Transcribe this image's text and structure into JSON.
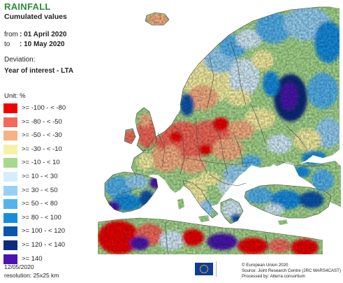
{
  "header": {
    "title": "RAINFALL",
    "subtitle": "Cumulated values",
    "from_label": "from",
    "from_value": ": 01 April 2020",
    "to_label": "to",
    "to_value": ": 10 May 2020",
    "deviation_label": "Deviation:",
    "deviation_value": "Year of interest - LTA"
  },
  "legend": {
    "unit": "Unit:  %",
    "items": [
      {
        "label": ">= -100 - < -80",
        "color": "#f00000"
      },
      {
        "label": ">= -80 - < -50",
        "color": "#f46a5a"
      },
      {
        "label": ">= -50 - < -30",
        "color": "#f8b184"
      },
      {
        "label": ">= -30 - < -10",
        "color": "#f6f1a4"
      },
      {
        "label": ">= -10 - < 10",
        "color": "#a6d88e"
      },
      {
        "label": ">= 10 - < 30",
        "color": "#d5eefb"
      },
      {
        "label": ">= 30 - < 50",
        "color": "#96d1f5"
      },
      {
        "label": ">= 50 - < 80",
        "color": "#53b3ee"
      },
      {
        "label": ">= 80 - < 100",
        "color": "#168ee0"
      },
      {
        "label": ">= 100 - < 120",
        "color": "#0a55ad"
      },
      {
        "label": ">= 120 - < 140",
        "color": "#0b2b7c"
      },
      {
        "label": ">= 140",
        "color": "#4a12b0"
      }
    ]
  },
  "footer": {
    "date": "12/05/2020",
    "resolution": "resolution: 25x25 km",
    "copyright": "© European Union 2020",
    "source": "Source: Joint Research Centre (JRC MARS4CAST)",
    "processed": "Processed by: Alterra consortium"
  },
  "colors": {
    "sea": "#ffffff",
    "outside_area": "#e9e9e9",
    "border": "#444444",
    "title": "#2f8a3c",
    "eu_flag_blue": "#103b96",
    "eu_flag_stars": "#ffd600"
  }
}
